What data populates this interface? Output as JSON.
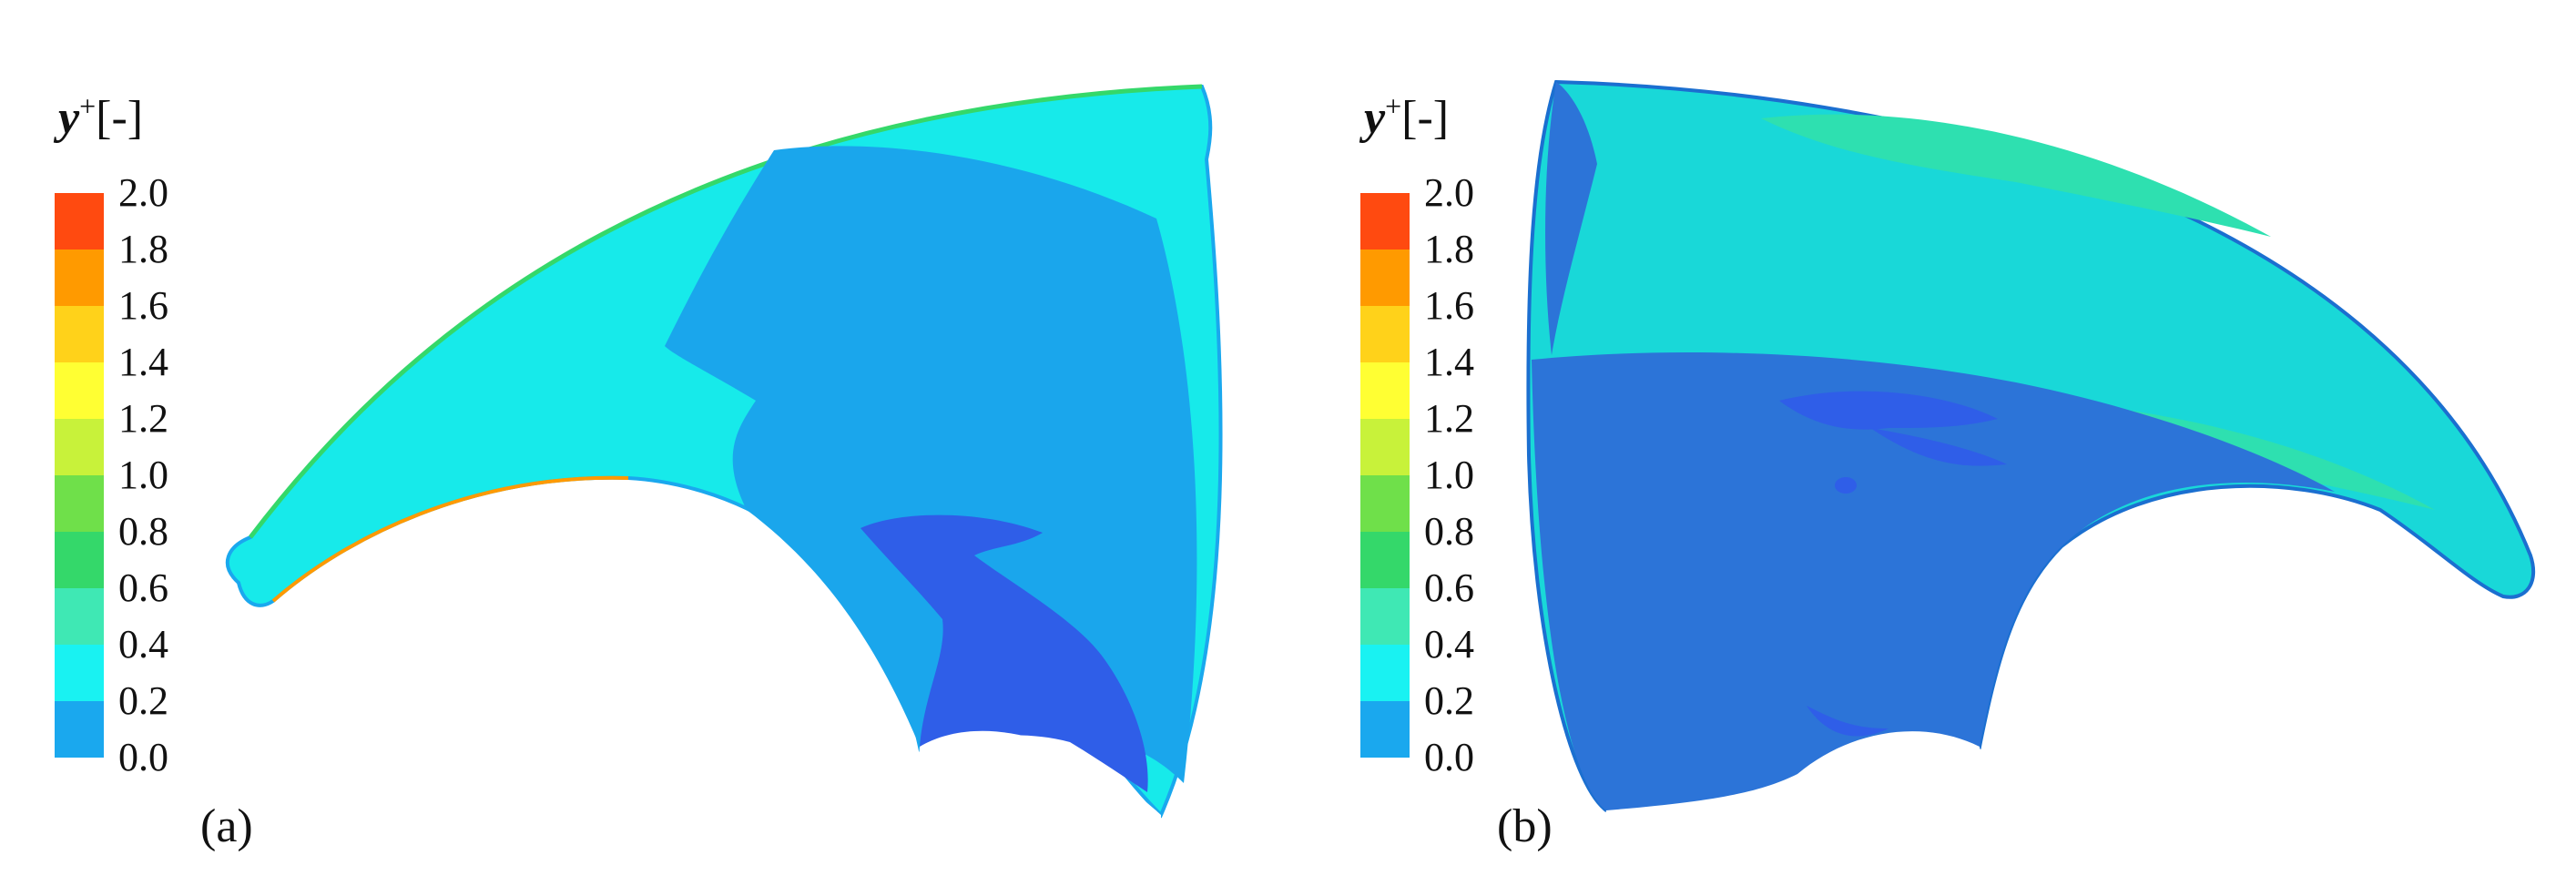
{
  "legend": {
    "title_symbol": "y",
    "title_superscript": "+",
    "title_unit": "[-]",
    "ticks": [
      "2.0",
      "1.8",
      "1.6",
      "1.4",
      "1.2",
      "1.0",
      "0.8",
      "0.6",
      "0.4",
      "0.2",
      "0.0"
    ],
    "band_colors": [
      "#ff4a10",
      "#ff9a00",
      "#ffd21a",
      "#ffff33",
      "#c8f23a",
      "#6fe04a",
      "#34d86a",
      "#3fe8b4",
      "#19f2f2",
      "#1aa8ee",
      "#1f55e8"
    ]
  },
  "panels": [
    {
      "label": "(a)"
    },
    {
      "label": "(b)"
    }
  ],
  "colors": {
    "level_0_0_0_2": "#2f5ee8",
    "level_0_2_0_4": "#1aa6ec",
    "level_0_4_0_6": "#17eaea",
    "level_0_6_0_8": "#2ee0b0",
    "shaded_surface": "#2c74d8"
  }
}
